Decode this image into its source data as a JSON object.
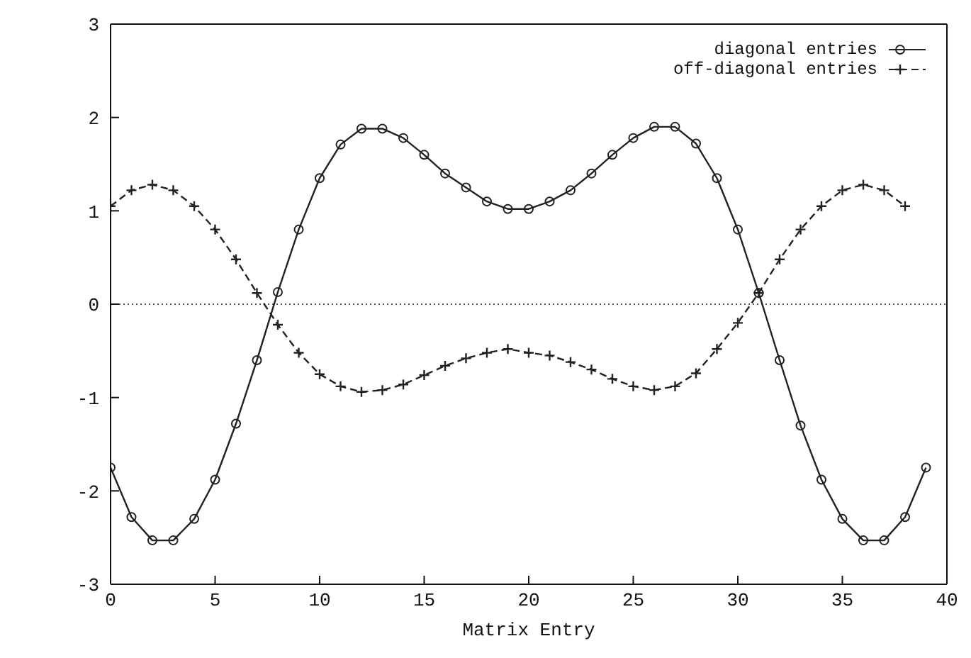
{
  "chart_data": {
    "type": "line",
    "xlabel": "Matrix Entry",
    "xlim": [
      0,
      40
    ],
    "xticks": [
      0,
      5,
      10,
      15,
      20,
      25,
      30,
      35,
      40
    ],
    "ylim": [
      -3,
      3
    ],
    "yticks": [
      -3,
      -2,
      -1,
      0,
      1,
      2,
      3
    ],
    "legend": "top right",
    "ref_lines": [
      {
        "axis": "y",
        "value": 0,
        "color": "#555555",
        "line_style": "dotted"
      }
    ],
    "series": [
      {
        "name": "diagonal entries",
        "color": "#222222",
        "marker": "circle",
        "line_style": "solid",
        "x": [
          0,
          1,
          2,
          3,
          4,
          5,
          6,
          7,
          8,
          9,
          10,
          11,
          12,
          13,
          14,
          15,
          16,
          17,
          18,
          19,
          20,
          21,
          22,
          23,
          24,
          25,
          26,
          27,
          28,
          29,
          30,
          31,
          32,
          33,
          34,
          35,
          36,
          37,
          38,
          39
        ],
        "values": [
          -1.75,
          -2.28,
          -2.53,
          -2.53,
          -2.3,
          -1.88,
          -1.28,
          -0.6,
          0.13,
          0.8,
          1.35,
          1.71,
          1.88,
          1.88,
          1.78,
          1.6,
          1.4,
          1.25,
          1.1,
          1.02,
          1.02,
          1.1,
          1.22,
          1.4,
          1.6,
          1.78,
          1.9,
          1.9,
          1.72,
          1.35,
          0.8,
          0.12,
          -0.6,
          -1.3,
          -1.88,
          -2.3,
          -2.53,
          -2.53,
          -2.28,
          -1.75
        ]
      },
      {
        "name": "off-diagonal entries",
        "color": "#222222",
        "marker": "cross",
        "line_style": "dashed",
        "x": [
          0,
          1,
          2,
          3,
          4,
          5,
          6,
          7,
          8,
          9,
          10,
          11,
          12,
          13,
          14,
          15,
          16,
          17,
          18,
          19,
          20,
          21,
          22,
          23,
          24,
          25,
          26,
          27,
          28,
          29,
          30,
          31,
          32,
          33,
          34,
          35,
          36,
          37,
          38
        ],
        "values": [
          1.05,
          1.22,
          1.28,
          1.22,
          1.05,
          0.8,
          0.48,
          0.12,
          -0.22,
          -0.52,
          -0.75,
          -0.88,
          -0.94,
          -0.92,
          -0.86,
          -0.76,
          -0.66,
          -0.58,
          -0.52,
          -0.48,
          -0.52,
          -0.55,
          -0.62,
          -0.7,
          -0.8,
          -0.88,
          -0.92,
          -0.88,
          -0.74,
          -0.48,
          -0.2,
          0.12,
          0.48,
          0.8,
          1.05,
          1.22,
          1.28,
          1.22,
          1.05
        ]
      }
    ]
  }
}
